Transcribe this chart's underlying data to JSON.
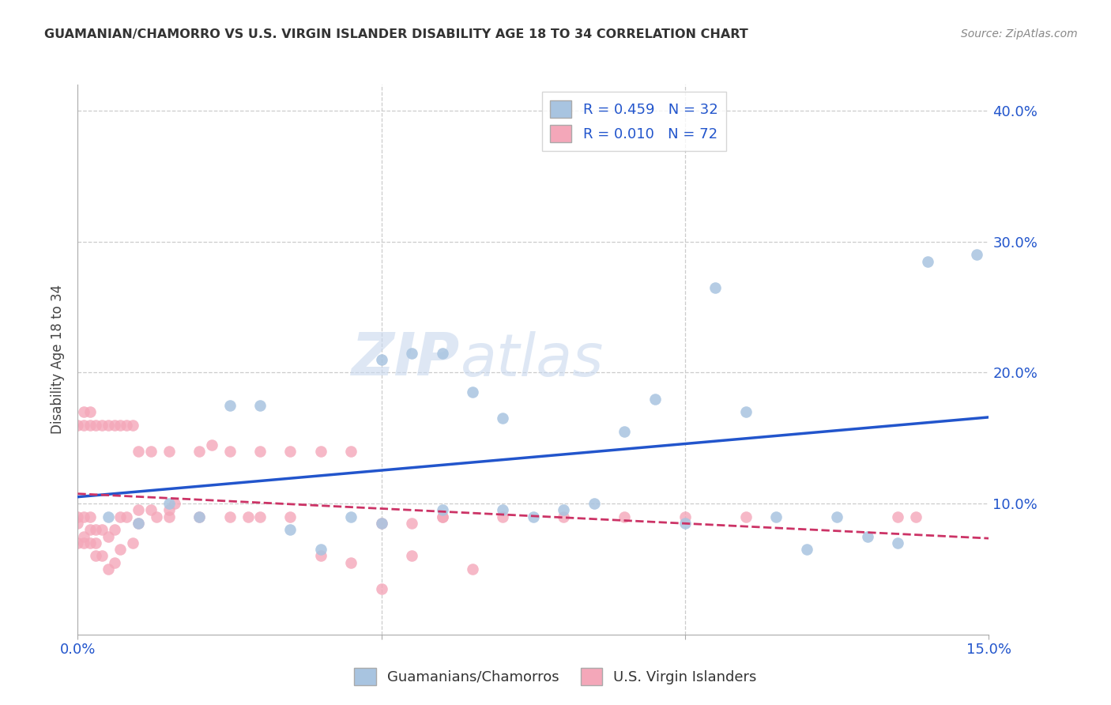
{
  "title": "GUAMANIAN/CHAMORRO VS U.S. VIRGIN ISLANDER DISABILITY AGE 18 TO 34 CORRELATION CHART",
  "source": "Source: ZipAtlas.com",
  "ylabel": "Disability Age 18 to 34",
  "xlim": [
    0.0,
    0.15
  ],
  "ylim": [
    0.0,
    0.42
  ],
  "yticks": [
    0.0,
    0.1,
    0.2,
    0.3,
    0.4
  ],
  "ytick_labels": [
    "",
    "10.0%",
    "20.0%",
    "30.0%",
    "40.0%"
  ],
  "grid_color": "#cccccc",
  "background_color": "#ffffff",
  "blue_R": 0.459,
  "blue_N": 32,
  "pink_R": 0.01,
  "pink_N": 72,
  "blue_color": "#a8c4e0",
  "pink_color": "#f4a7b9",
  "blue_line_color": "#2255cc",
  "pink_line_color": "#cc3366",
  "blue_scatter_x": [
    0.005,
    0.01,
    0.015,
    0.02,
    0.025,
    0.03,
    0.035,
    0.04,
    0.045,
    0.05,
    0.055,
    0.06,
    0.065,
    0.07,
    0.075,
    0.08,
    0.085,
    0.09,
    0.095,
    0.1,
    0.105,
    0.11,
    0.115,
    0.12,
    0.125,
    0.13,
    0.135,
    0.05,
    0.06,
    0.07,
    0.14,
    0.148
  ],
  "blue_scatter_y": [
    0.09,
    0.085,
    0.1,
    0.09,
    0.175,
    0.175,
    0.08,
    0.065,
    0.09,
    0.085,
    0.215,
    0.215,
    0.185,
    0.165,
    0.09,
    0.095,
    0.1,
    0.155,
    0.18,
    0.085,
    0.265,
    0.17,
    0.09,
    0.065,
    0.09,
    0.075,
    0.07,
    0.21,
    0.095,
    0.095,
    0.285,
    0.29
  ],
  "pink_scatter_x": [
    0.0,
    0.0,
    0.0,
    0.001,
    0.001,
    0.001,
    0.002,
    0.002,
    0.002,
    0.003,
    0.003,
    0.003,
    0.004,
    0.004,
    0.005,
    0.005,
    0.006,
    0.006,
    0.007,
    0.007,
    0.008,
    0.009,
    0.01,
    0.01,
    0.012,
    0.013,
    0.015,
    0.015,
    0.016,
    0.02,
    0.022,
    0.025,
    0.028,
    0.03,
    0.035,
    0.04,
    0.045,
    0.05,
    0.055,
    0.06,
    0.065,
    0.0,
    0.001,
    0.002,
    0.003,
    0.004,
    0.005,
    0.006,
    0.007,
    0.008,
    0.009,
    0.01,
    0.012,
    0.015,
    0.02,
    0.025,
    0.03,
    0.035,
    0.04,
    0.045,
    0.05,
    0.055,
    0.06,
    0.07,
    0.08,
    0.09,
    0.1,
    0.11,
    0.135,
    0.138,
    0.001,
    0.002
  ],
  "pink_scatter_y": [
    0.085,
    0.09,
    0.07,
    0.07,
    0.075,
    0.09,
    0.07,
    0.08,
    0.09,
    0.06,
    0.07,
    0.08,
    0.06,
    0.08,
    0.05,
    0.075,
    0.055,
    0.08,
    0.065,
    0.09,
    0.09,
    0.07,
    0.085,
    0.095,
    0.095,
    0.09,
    0.09,
    0.095,
    0.1,
    0.09,
    0.145,
    0.09,
    0.09,
    0.09,
    0.09,
    0.06,
    0.055,
    0.035,
    0.06,
    0.09,
    0.05,
    0.16,
    0.17,
    0.16,
    0.16,
    0.16,
    0.16,
    0.16,
    0.16,
    0.16,
    0.16,
    0.14,
    0.14,
    0.14,
    0.14,
    0.14,
    0.14,
    0.14,
    0.14,
    0.14,
    0.085,
    0.085,
    0.09,
    0.09,
    0.09,
    0.09,
    0.09,
    0.09,
    0.09,
    0.09,
    0.16,
    0.17
  ],
  "watermark_top": "ZIP",
  "watermark_bottom": "atlas",
  "legend_blue_label": "Guamanians/Chamorros",
  "legend_pink_label": "U.S. Virgin Islanders"
}
